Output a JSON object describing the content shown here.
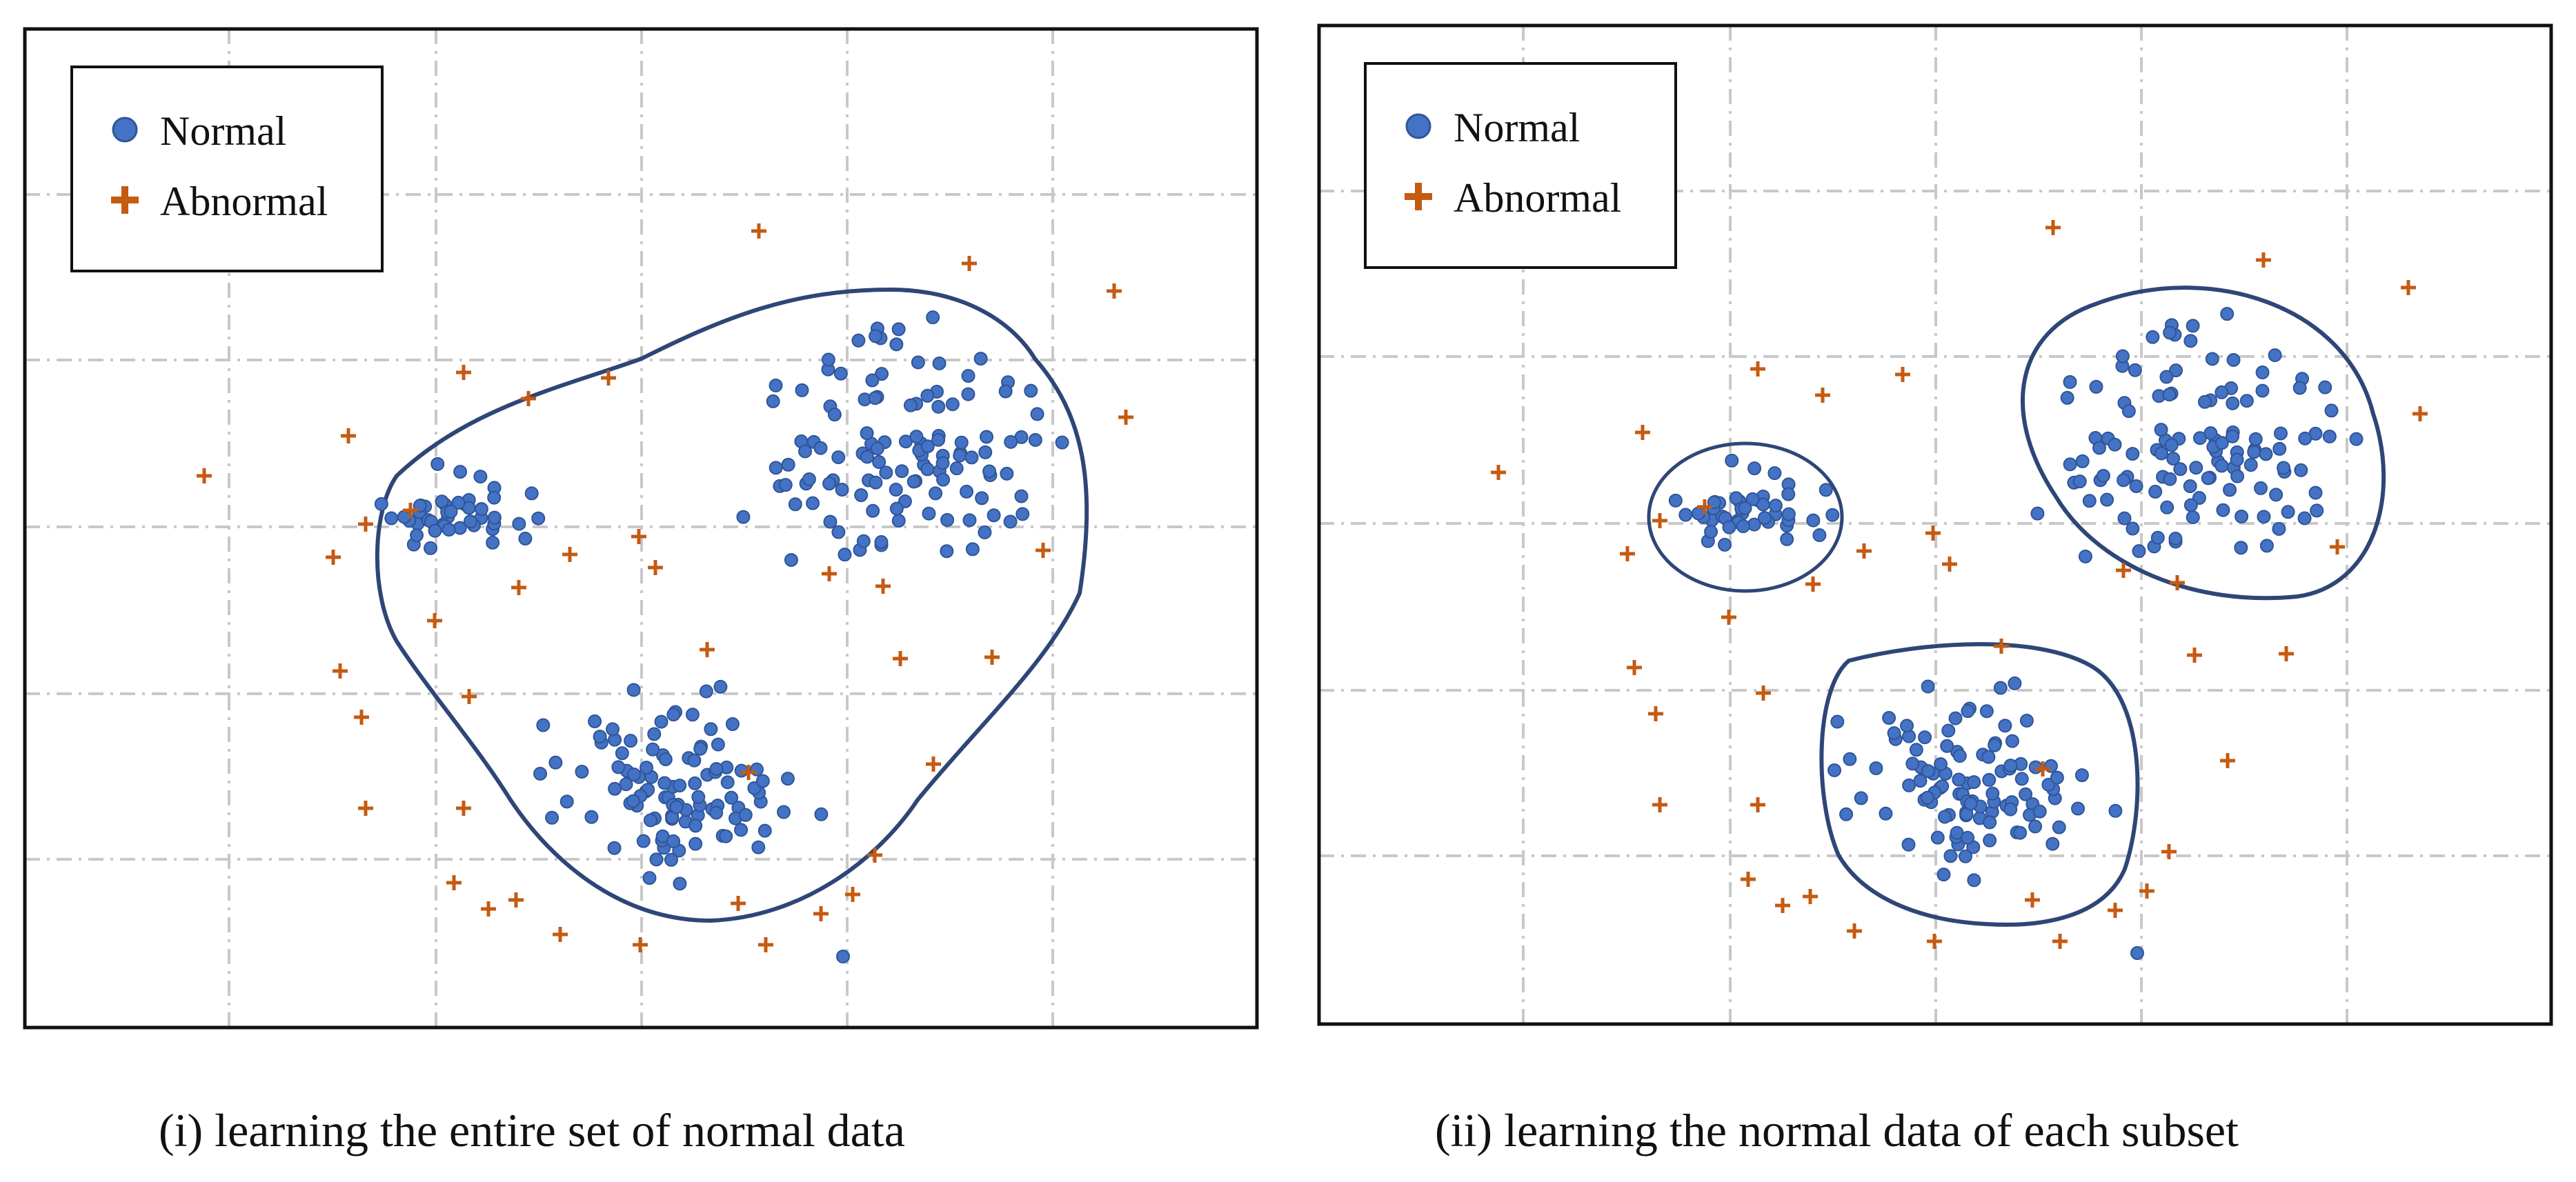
{
  "colors": {
    "normal_fill": "#4472C4",
    "normal_stroke": "#2F5597",
    "abnormal": "#C55A11",
    "boundary": "#2E4677",
    "grid": "#C8C8C8",
    "frame": "#111111"
  },
  "legend": {
    "normal_label": "Normal",
    "abnormal_label": "Abnormal"
  },
  "panels": [
    {
      "id": "entire-set",
      "caption": "(i) learning the entire set of normal data",
      "boundary_mode": "single"
    },
    {
      "id": "each-subset",
      "caption": "(ii) learning the normal data of each subset",
      "boundary_mode": "per-cluster"
    }
  ],
  "chart_data": {
    "type": "scatter",
    "title": "",
    "series": [
      {
        "name": "Normal",
        "marker": "circle",
        "clusters": 3
      },
      {
        "name": "Abnormal",
        "marker": "plus"
      }
    ]
  }
}
